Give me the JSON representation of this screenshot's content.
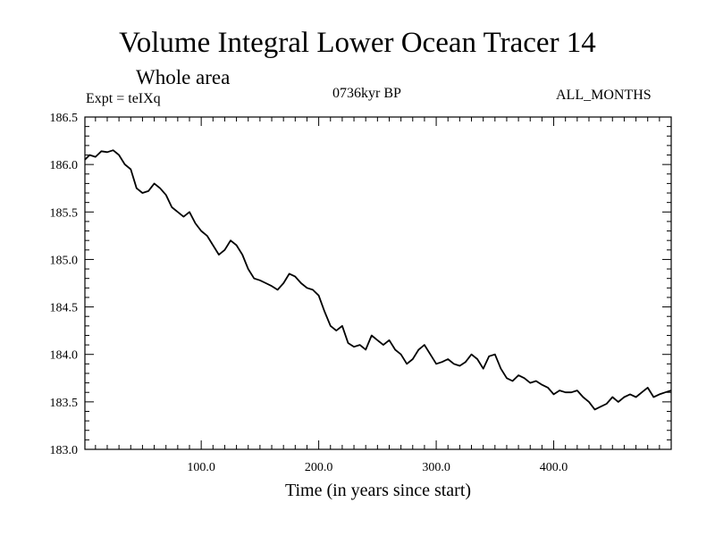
{
  "chart_data": {
    "type": "line",
    "title": "Volume Integral Lower Ocean Tracer 14",
    "subtitle": "Whole area",
    "experiment": "Expt = teIXq",
    "period": "0736kyr BP",
    "months": "ALL_MONTHS",
    "xlabel": "Time (in years since start)",
    "ylabel": "",
    "xlim": [
      1,
      500
    ],
    "ylim": [
      183.0,
      186.5
    ],
    "x_ticks": [
      100,
      200,
      300,
      400
    ],
    "x_tick_labels": [
      "100.0",
      "200.0",
      "300.0",
      "400.0"
    ],
    "y_ticks": [
      183.0,
      183.5,
      184.0,
      184.5,
      185.0,
      185.5,
      186.0,
      186.5
    ],
    "y_tick_labels": [
      "183.0",
      "183.5",
      "184.0",
      "184.5",
      "185.0",
      "185.5",
      "186.0",
      "186.5"
    ],
    "grid": false,
    "legend": "none",
    "series": [
      {
        "color": "#000000",
        "x": [
          1,
          5,
          10,
          15,
          20,
          25,
          30,
          35,
          40,
          45,
          50,
          55,
          60,
          65,
          70,
          75,
          80,
          85,
          90,
          95,
          100,
          105,
          110,
          115,
          120,
          125,
          130,
          135,
          140,
          145,
          150,
          155,
          160,
          165,
          170,
          175,
          180,
          185,
          190,
          195,
          200,
          205,
          210,
          215,
          220,
          225,
          230,
          235,
          240,
          245,
          250,
          255,
          260,
          265,
          270,
          275,
          280,
          285,
          290,
          295,
          300,
          305,
          310,
          315,
          320,
          325,
          330,
          335,
          340,
          345,
          350,
          355,
          360,
          365,
          370,
          375,
          380,
          385,
          390,
          395,
          400,
          405,
          410,
          415,
          420,
          425,
          430,
          435,
          440,
          445,
          450,
          455,
          460,
          465,
          470,
          475,
          480,
          485,
          490,
          495,
          500
        ],
        "y": [
          186.05,
          186.1,
          186.08,
          186.14,
          186.13,
          186.15,
          186.1,
          186.0,
          185.95,
          185.75,
          185.7,
          185.72,
          185.8,
          185.75,
          185.68,
          185.55,
          185.5,
          185.45,
          185.5,
          185.38,
          185.3,
          185.25,
          185.15,
          185.05,
          185.1,
          185.2,
          185.15,
          185.05,
          184.9,
          184.8,
          184.78,
          184.75,
          184.72,
          184.68,
          184.75,
          184.85,
          184.82,
          184.75,
          184.7,
          184.68,
          184.62,
          184.45,
          184.3,
          184.25,
          184.3,
          184.12,
          184.08,
          184.1,
          184.05,
          184.2,
          184.15,
          184.1,
          184.15,
          184.05,
          184.0,
          183.9,
          183.95,
          184.05,
          184.1,
          184.0,
          183.9,
          183.92,
          183.95,
          183.9,
          183.88,
          183.92,
          184.0,
          183.95,
          183.85,
          183.98,
          184.0,
          183.85,
          183.75,
          183.72,
          183.78,
          183.75,
          183.7,
          183.72,
          183.68,
          183.65,
          183.58,
          183.62,
          183.6,
          183.6,
          183.62,
          183.55,
          183.5,
          183.42,
          183.45,
          183.48,
          183.55,
          183.5,
          183.55,
          183.58,
          183.55,
          183.6,
          183.65,
          183.55,
          183.58,
          183.6,
          183.62
        ]
      }
    ]
  }
}
